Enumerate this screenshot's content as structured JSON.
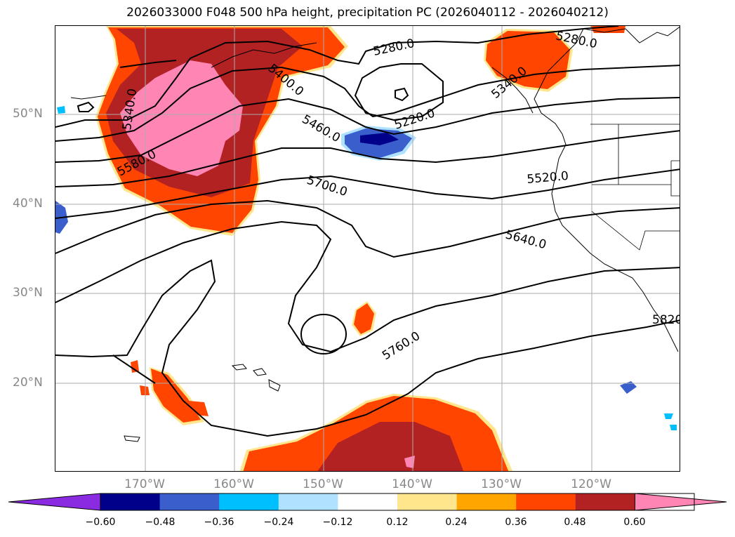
{
  "title": "2026033000 F048 500 hPa height, precipitation PC (2026040112 - 2026040212)",
  "lat_labels": [
    "50°N",
    "40°N",
    "30°N",
    "20°N"
  ],
  "lon_labels": [
    "170°W",
    "160°W",
    "150°W",
    "140°W",
    "130°W",
    "120°W"
  ],
  "contour_labels": [
    "5280.0",
    "5280.0",
    "5400.0",
    "5340.0",
    "5460.0",
    "5220.0",
    "5580.0",
    "5520.0",
    "5700.0",
    "5640.0",
    "5760.0",
    "5820.0",
    "5340.0"
  ],
  "colorbar": {
    "ticks": [
      "−0.60",
      "−0.48",
      "−0.36",
      "−0.24",
      "−0.12",
      "0.12",
      "0.24",
      "0.36",
      "0.48",
      "0.60"
    ],
    "colors": [
      "#8a2be2",
      "#00008b",
      "#3a5fcd",
      "#00bfff",
      "#b0e2ff",
      "#ffffff",
      "#ffe68c",
      "#ffa500",
      "#ff4500",
      "#b22222",
      "#ff85b4"
    ]
  }
}
